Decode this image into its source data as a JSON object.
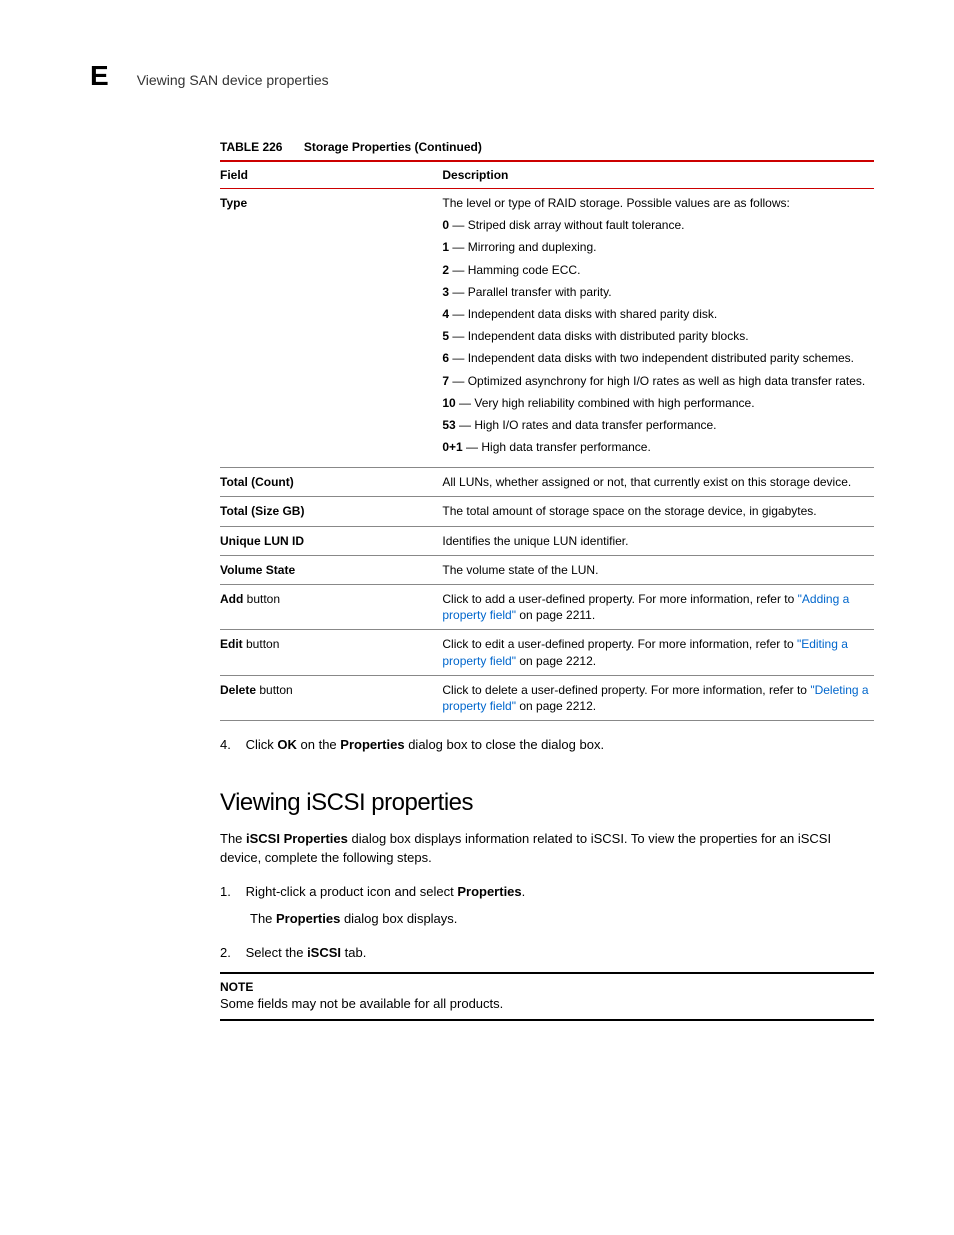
{
  "header": {
    "appendix_letter": "E",
    "title": "Viewing SAN device properties"
  },
  "table": {
    "caption_label": "TABLE 226",
    "caption_text": "Storage Properties (Continued)",
    "columns": {
      "field": "Field",
      "description": "Description"
    },
    "type_row": {
      "field": "Type",
      "intro": "The level or type of RAID storage. Possible values are as follows:",
      "items": [
        {
          "num": "0",
          "text": "Striped disk array without fault tolerance."
        },
        {
          "num": "1",
          "text": "Mirroring and duplexing."
        },
        {
          "num": "2",
          "text": "Hamming code ECC."
        },
        {
          "num": "3",
          "text": "Parallel transfer with parity."
        },
        {
          "num": "4",
          "text": "Independent data disks with shared parity disk."
        },
        {
          "num": "5",
          "text": "Independent data disks with distributed parity blocks."
        },
        {
          "num": "6",
          "text": "Independent data disks with two independent distributed parity schemes."
        },
        {
          "num": "7",
          "text": "Optimized asynchrony for high I/O rates as well as high data transfer rates."
        },
        {
          "num": "10",
          "text": "Very high reliability combined with high performance."
        },
        {
          "num": "53",
          "text": "High I/O rates and data transfer performance."
        },
        {
          "num": "0+1",
          "text": "High data transfer performance."
        }
      ]
    },
    "total_count": {
      "field": "Total (Count)",
      "desc": "All LUNs, whether assigned or not, that currently exist on this storage device."
    },
    "total_size": {
      "field": "Total (Size GB)",
      "desc": "The total amount of storage space on the storage device, in gigabytes."
    },
    "unique_lun": {
      "field": "Unique LUN ID",
      "desc": "Identifies the unique LUN identifier."
    },
    "volume_state": {
      "field": "Volume State",
      "desc": "The volume state of the LUN."
    },
    "add_btn": {
      "field_bold": "Add",
      "field_rest": " button",
      "desc_pre": "Click to add a user-defined property. For more information, refer to ",
      "link": "\"Adding a property field\"",
      "desc_post": " on page 2211."
    },
    "edit_btn": {
      "field_bold": "Edit",
      "field_rest": " button",
      "desc_pre": "Click to edit a user-defined property. For more information, refer to ",
      "link": "\"Editing a property field\"",
      "desc_post": " on page 2212."
    },
    "delete_btn": {
      "field_bold": "Delete",
      "field_rest": " button",
      "desc_pre": "Click to delete a user-defined property. For more information, refer to ",
      "link": "\"Deleting a property field\"",
      "desc_post": " on page 2212."
    }
  },
  "step4": {
    "num": "4.",
    "pre": "Click ",
    "b1": "OK",
    "mid": " on the ",
    "b2": "Properties",
    "post": " dialog box to close the dialog box."
  },
  "section": {
    "heading": "Viewing iSCSI properties",
    "para_pre": "The ",
    "para_b": "iSCSI Properties",
    "para_post": " dialog box displays information related to iSCSI. To view the properties for an iSCSI device, complete the following steps."
  },
  "step1": {
    "num": "1.",
    "pre": "Right-click a product icon and select ",
    "b": "Properties",
    "post": ".",
    "sub_pre": "The ",
    "sub_b": "Properties",
    "sub_post": " dialog box displays."
  },
  "step2": {
    "num": "2.",
    "pre": "Select the ",
    "b": "iSCSI",
    "post": " tab."
  },
  "note": {
    "label": "NOTE",
    "text": "Some fields may not be available for all products."
  }
}
